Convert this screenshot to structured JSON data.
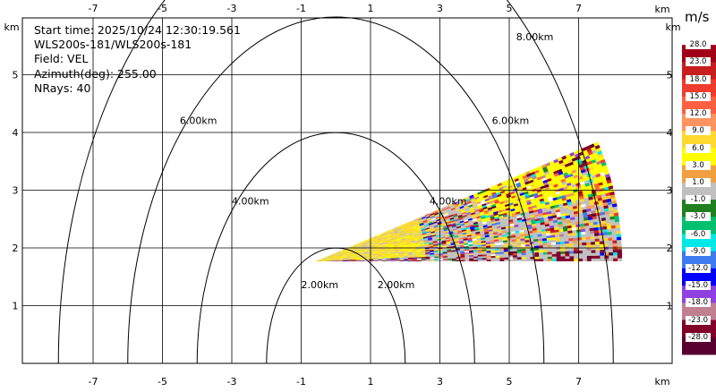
{
  "info": {
    "start_time": "Start time: 2025/10/24 12:30:19.561",
    "instrument": "WLS200s-181/WLS200s-181",
    "field": "Field: VEL",
    "azimuth": "Azimuth(deg): 255.00",
    "nrays": "NRays: 40"
  },
  "colorbar": {
    "unit": "m/s",
    "levels": [
      "28.0",
      "23.0",
      "18.0",
      "15.0",
      "12.0",
      "9.0",
      "6.0",
      "3.0",
      "1.0",
      "-1.0",
      "-3.0",
      "-6.0",
      "-9.0",
      "-12.0",
      "-15.0",
      "-18.0",
      "-23.0",
      "-28.0"
    ],
    "colors": [
      "#ffffff",
      "#a00018",
      "#c81e1e",
      "#f03c2c",
      "#ff6040",
      "#ff9460",
      "#ffd830",
      "#ffff00",
      "#f0a040",
      "#c0c0c0",
      "#208020",
      "#00c070",
      "#00e8e8",
      "#3c7cf0",
      "#0000ff",
      "#9040e0",
      "#c08090",
      "#80002a",
      "#5a0030"
    ]
  },
  "chart_data": {
    "type": "ppi-rhi",
    "xlabel": "km",
    "ylabel": "km",
    "xlim": [
      -8.9,
      8.9
    ],
    "ylim": [
      0,
      5.5
    ],
    "xticks": [
      -7,
      -5,
      -3,
      -1,
      1,
      3,
      5,
      7
    ],
    "yticks": [
      1,
      2,
      3,
      4,
      5
    ],
    "range_rings_km": [
      2,
      4,
      6,
      8
    ],
    "ring_labels": [
      "2.00km",
      "4.00km",
      "6.00km",
      "8.00km"
    ],
    "sector": {
      "origin_x": -0.55,
      "origin_y": 1.77,
      "range_km_max": 8.8,
      "elev_deg_min": 0,
      "elev_deg_max": 23
    },
    "grid": true
  }
}
